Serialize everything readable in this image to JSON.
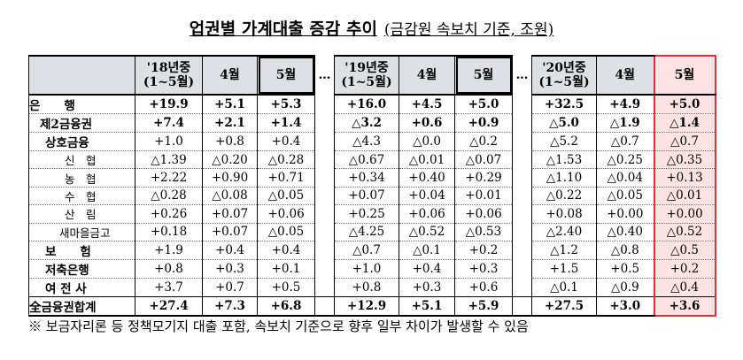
{
  "title": "업권별 가계대출 증감 추이",
  "subtitle": "(금감원 속보치 기준, 조원)",
  "table": {
    "header": [
      [
        "'18년중",
        "(1~5월)"
      ],
      "4월",
      "5월",
      "…",
      [
        "'19년중",
        "(1~5월)"
      ],
      "4월",
      "5월",
      "…",
      [
        "'20년중",
        "(1~5월)"
      ],
      "4월",
      "5월"
    ],
    "rows": [
      [
        "은　　행",
        "+19.9",
        "+5.1",
        "+5.3",
        "+16.0",
        "+4.5",
        "+5.0",
        "+32.5",
        "+4.9",
        "+5.0"
      ],
      [
        "제2금융권",
        "+7.4",
        "+2.1",
        "+1.4",
        "△3.2",
        "+0.6",
        "+0.9",
        "△5.0",
        "△1.9",
        "△1.4"
      ],
      [
        "상호금융",
        "+1.0",
        "+0.8",
        "+0.4",
        "△4.3",
        "△0.0",
        "△0.2",
        "△5.2",
        "△0.7",
        "△0.7"
      ],
      [
        "신　협",
        "△1.39",
        "△0.20",
        "△0.28",
        "△0.67",
        "△0.01",
        "△0.07",
        "△1.53",
        "△0.25",
        "△0.35"
      ],
      [
        "농　협",
        "+2.22",
        "+0.90",
        "+0.71",
        "+0.34",
        "+0.40",
        "+0.29",
        "△1.10",
        "△0.04",
        "+0.13"
      ],
      [
        "수　협",
        "△0.28",
        "△0.08",
        "△0.05",
        "+0.07",
        "+0.04",
        "+0.01",
        "△0.22",
        "△0.05",
        "△0.01"
      ],
      [
        "산　림",
        "+0.26",
        "+0.07",
        "+0.06",
        "+0.25",
        "+0.06",
        "+0.06",
        "+0.08",
        "+0.00",
        "+0.00"
      ],
      [
        "새마을금고",
        "+0.18",
        "+0.07",
        "△0.05",
        "△4.25",
        "△0.52",
        "△0.53",
        "△2.40",
        "△0.40",
        "△0.52"
      ],
      [
        "보　　험",
        "+1.9",
        "+0.4",
        "+0.4",
        "△0.7",
        "△0.1",
        "+0.2",
        "△1.2",
        "△0.8",
        "△0.5"
      ],
      [
        "저축은행",
        "+0.8",
        "+0.3",
        "+0.1",
        "+1.0",
        "+0.4",
        "+0.3",
        "+1.5",
        "+0.5",
        "+0.2"
      ],
      [
        "여 전 사",
        "+3.7",
        "+0.7",
        "+0.5",
        "+0.8",
        "+0.3",
        "+0.6",
        "△0.1",
        "△0.9",
        "△0.4"
      ],
      [
        "全금융권합계",
        "+27.4",
        "+7.3",
        "+6.8",
        "+12.9",
        "+5.1",
        "+5.9",
        "+27.5",
        "+3.0",
        "+3.6"
      ]
    ]
  },
  "footnote": "※ 보금자리론 등 정책모기지 대출 포함, 속보치 기준으로 향후 일부 차이가 발생할 수 있음"
}
